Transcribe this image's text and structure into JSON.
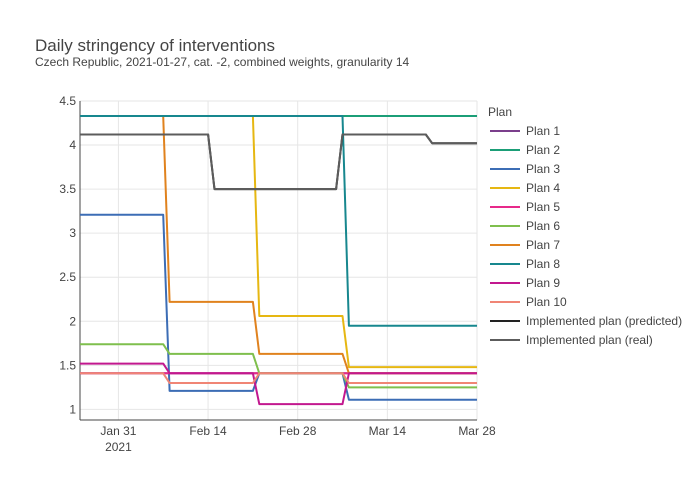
{
  "chart_data": {
    "type": "line",
    "title": "Daily stringency of interventions",
    "subtitle": "Czech Republic, 2021-01-27, cat. -2, combined weights, granularity 14",
    "xlabel": "",
    "ylabel": "",
    "x_range": [
      "2021-01-25",
      "2021-03-28"
    ],
    "ylim": [
      0.88,
      4.5
    ],
    "x_ticks": [
      {
        "date": "2021-01-31",
        "label": "Jan 31",
        "sublabel": "2021"
      },
      {
        "date": "2021-02-14",
        "label": "Feb 14",
        "sublabel": ""
      },
      {
        "date": "2021-02-28",
        "label": "Feb 28",
        "sublabel": ""
      },
      {
        "date": "2021-03-14",
        "label": "Mar 14",
        "sublabel": ""
      },
      {
        "date": "2021-03-28",
        "label": "Mar 28",
        "sublabel": ""
      }
    ],
    "y_ticks": [
      {
        "value": 1,
        "label": "1"
      },
      {
        "value": 1.5,
        "label": "1.5"
      },
      {
        "value": 2,
        "label": "2"
      },
      {
        "value": 2.5,
        "label": "2.5"
      },
      {
        "value": 3,
        "label": "3"
      },
      {
        "value": 3.5,
        "label": "3.5"
      },
      {
        "value": 4,
        "label": "4"
      },
      {
        "value": 4.5,
        "label": "4.5"
      }
    ],
    "grid": true,
    "legend": {
      "title": "Plan",
      "position": "right"
    },
    "series": [
      {
        "name": "Plan 1",
        "color": "#7b3f8c",
        "points": [
          [
            "2021-01-25",
            1.41
          ],
          [
            "2021-03-28",
            1.41
          ]
        ]
      },
      {
        "name": "Plan 2",
        "color": "#1b9e77",
        "points": [
          [
            "2021-01-25",
            4.33
          ],
          [
            "2021-03-28",
            4.33
          ]
        ]
      },
      {
        "name": "Plan 3",
        "color": "#3c6db5",
        "points": [
          [
            "2021-01-25",
            3.21
          ],
          [
            "2021-02-07",
            3.21
          ],
          [
            "2021-02-08",
            1.21
          ],
          [
            "2021-02-21",
            1.21
          ],
          [
            "2021-02-22",
            1.41
          ],
          [
            "2021-03-07",
            1.41
          ],
          [
            "2021-03-08",
            1.11
          ],
          [
            "2021-03-28",
            1.11
          ]
        ]
      },
      {
        "name": "Plan 4",
        "color": "#e6b712",
        "points": [
          [
            "2021-02-21",
            4.33
          ],
          [
            "2021-02-22",
            2.06
          ],
          [
            "2021-03-07",
            2.06
          ],
          [
            "2021-03-08",
            1.48
          ],
          [
            "2021-03-28",
            1.48
          ]
        ]
      },
      {
        "name": "Plan 5",
        "color": "#e7298a",
        "points": [
          [
            "2021-01-25",
            1.41
          ],
          [
            "2021-03-28",
            1.41
          ]
        ]
      },
      {
        "name": "Plan 6",
        "color": "#7fbf4d",
        "points": [
          [
            "2021-01-25",
            1.74
          ],
          [
            "2021-02-07",
            1.74
          ],
          [
            "2021-02-08",
            1.63
          ],
          [
            "2021-02-21",
            1.63
          ],
          [
            "2021-02-22",
            1.41
          ],
          [
            "2021-03-07",
            1.41
          ],
          [
            "2021-03-08",
            1.25
          ],
          [
            "2021-03-28",
            1.25
          ]
        ]
      },
      {
        "name": "Plan 7",
        "color": "#e0821e",
        "points": [
          [
            "2021-02-07",
            4.33
          ],
          [
            "2021-02-08",
            2.22
          ],
          [
            "2021-02-21",
            2.22
          ],
          [
            "2021-02-22",
            1.63
          ],
          [
            "2021-03-07",
            1.63
          ],
          [
            "2021-03-08",
            1.41
          ],
          [
            "2021-03-28",
            1.41
          ]
        ]
      },
      {
        "name": "Plan 8",
        "color": "#17878e",
        "points": [
          [
            "2021-01-25",
            4.33
          ],
          [
            "2021-03-07",
            4.33
          ],
          [
            "2021-03-08",
            1.95
          ],
          [
            "2021-03-28",
            1.95
          ]
        ]
      },
      {
        "name": "Plan 9",
        "color": "#c2188f",
        "points": [
          [
            "2021-01-25",
            1.52
          ],
          [
            "2021-02-07",
            1.52
          ],
          [
            "2021-02-08",
            1.41
          ],
          [
            "2021-02-21",
            1.41
          ],
          [
            "2021-02-22",
            1.06
          ],
          [
            "2021-03-07",
            1.06
          ],
          [
            "2021-03-08",
            1.41
          ],
          [
            "2021-03-28",
            1.41
          ]
        ]
      },
      {
        "name": "Plan 10",
        "color": "#f08575",
        "points": [
          [
            "2021-01-25",
            1.41
          ],
          [
            "2021-02-07",
            1.41
          ],
          [
            "2021-02-08",
            1.3
          ],
          [
            "2021-02-21",
            1.3
          ],
          [
            "2021-02-22",
            1.41
          ],
          [
            "2021-03-07",
            1.41
          ],
          [
            "2021-03-08",
            1.3
          ],
          [
            "2021-03-28",
            1.3
          ]
        ]
      },
      {
        "name": "Implemented plan (predicted)",
        "color": "#222222",
        "points": [
          [
            "2021-01-25",
            4.12
          ],
          [
            "2021-02-14",
            4.12
          ],
          [
            "2021-02-15",
            3.5
          ],
          [
            "2021-03-06",
            3.5
          ],
          [
            "2021-03-07",
            4.12
          ],
          [
            "2021-03-20",
            4.12
          ],
          [
            "2021-03-21",
            4.02
          ],
          [
            "2021-03-28",
            4.02
          ]
        ]
      },
      {
        "name": "Implemented plan (real)",
        "color": "#5c5c5c",
        "points": [
          [
            "2021-01-25",
            4.12
          ],
          [
            "2021-02-14",
            4.12
          ],
          [
            "2021-02-15",
            3.5
          ],
          [
            "2021-03-06",
            3.5
          ],
          [
            "2021-03-07",
            4.12
          ],
          [
            "2021-03-20",
            4.12
          ],
          [
            "2021-03-21",
            4.02
          ],
          [
            "2021-03-28",
            4.02
          ]
        ]
      }
    ]
  }
}
